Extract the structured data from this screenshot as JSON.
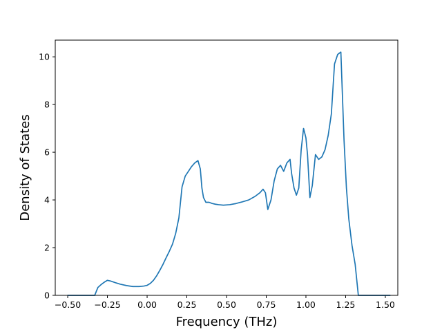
{
  "chart_data": {
    "type": "line",
    "title": "",
    "xlabel": "Frequency (THz)",
    "ylabel": "Density of States",
    "xlim": [
      -0.5785,
      1.5785
    ],
    "ylim": [
      0,
      10.7
    ],
    "xticks": [
      -0.5,
      -0.25,
      0.0,
      0.25,
      0.5,
      0.75,
      1.0,
      1.25,
      1.5
    ],
    "xtick_labels": [
      "−0.50",
      "−0.25",
      "0.00",
      "0.25",
      "0.50",
      "0.75",
      "1.00",
      "1.25",
      "1.50"
    ],
    "yticks": [
      0,
      2,
      4,
      6,
      8,
      10
    ],
    "ytick_labels": [
      "0",
      "2",
      "4",
      "6",
      "8",
      "10"
    ],
    "grid": false,
    "colors": {
      "line": "#1f77b4",
      "axes": "#000000",
      "background": "#ffffff"
    },
    "series": [
      {
        "x": [
          -0.5,
          -0.33,
          -0.31,
          -0.29,
          -0.27,
          -0.25,
          -0.23,
          -0.2,
          -0.17,
          -0.13,
          -0.09,
          -0.05,
          -0.02,
          0.0,
          0.02,
          0.04,
          0.06,
          0.08,
          0.1,
          0.12,
          0.14,
          0.16,
          0.18,
          0.2,
          0.22,
          0.24,
          0.26,
          0.28,
          0.3,
          0.32,
          0.335,
          0.345,
          0.355,
          0.37,
          0.39,
          0.41,
          0.43,
          0.45,
          0.48,
          0.52,
          0.56,
          0.6,
          0.64,
          0.68,
          0.71,
          0.73,
          0.745,
          0.76,
          0.78,
          0.8,
          0.82,
          0.84,
          0.86,
          0.88,
          0.9,
          0.91,
          0.925,
          0.94,
          0.955,
          0.97,
          0.985,
          1.0,
          1.01,
          1.025,
          1.04,
          1.06,
          1.08,
          1.1,
          1.12,
          1.14,
          1.16,
          1.18,
          1.2,
          1.22,
          1.24,
          1.255,
          1.27,
          1.29,
          1.31,
          1.33,
          1.35,
          1.365,
          1.38,
          1.53
        ],
        "y": [
          0.0,
          0.0,
          0.33,
          0.45,
          0.55,
          0.63,
          0.6,
          0.53,
          0.47,
          0.41,
          0.37,
          0.37,
          0.39,
          0.42,
          0.5,
          0.63,
          0.82,
          1.05,
          1.3,
          1.58,
          1.85,
          2.15,
          2.6,
          3.25,
          4.55,
          5.0,
          5.2,
          5.4,
          5.55,
          5.65,
          5.3,
          4.5,
          4.1,
          3.9,
          3.9,
          3.85,
          3.82,
          3.8,
          3.78,
          3.8,
          3.85,
          3.92,
          4.0,
          4.15,
          4.3,
          4.45,
          4.3,
          3.6,
          4.0,
          4.8,
          5.3,
          5.45,
          5.2,
          5.55,
          5.7,
          5.1,
          4.5,
          4.2,
          4.5,
          6.1,
          7.0,
          6.6,
          5.9,
          4.1,
          4.6,
          5.9,
          5.7,
          5.8,
          6.1,
          6.7,
          7.6,
          9.7,
          10.1,
          10.2,
          6.5,
          4.5,
          3.2,
          2.1,
          1.3,
          0.0,
          0.0,
          0.0,
          0.0,
          0.0
        ]
      }
    ]
  }
}
